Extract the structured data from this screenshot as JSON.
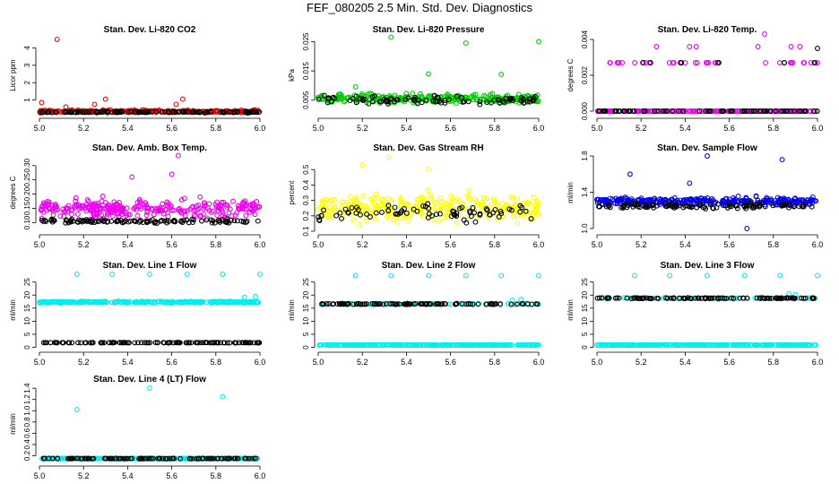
{
  "page": {
    "title": "FEF_080205  2.5 Min. Std. Dev. Diagnostics"
  },
  "colors": {
    "red": "#ee0000",
    "green": "#00cc00",
    "magenta": "#ee00ee",
    "yellow": "#ffff00",
    "blue": "#0000ee",
    "cyan": "#00eeee",
    "black": "#000000"
  },
  "chart_data": [
    {
      "type": "scatter",
      "title": "Stan. Dev. Li-820 CO2",
      "ylabel": "Licor ppm",
      "xlim": [
        5.0,
        6.0
      ],
      "ylim": [
        0.15,
        4.7
      ],
      "xticks": [
        5.0,
        5.2,
        5.4,
        5.6,
        5.8,
        6.0
      ],
      "xtick_labels": [
        "5.0",
        "5.2",
        "5.4",
        "5.6",
        "5.8",
        "6.0"
      ],
      "yticks": [
        1,
        2,
        3,
        4
      ],
      "ytick_labels": [
        "1",
        "2",
        "3",
        "4"
      ],
      "series": [
        {
          "name": "colored",
          "color": "red",
          "base": 0.35,
          "spread": 0.12,
          "n": 240,
          "outliers": [
            [
              5.08,
              4.5
            ],
            [
              5.01,
              0.85
            ],
            [
              5.3,
              1.05
            ],
            [
              5.25,
              0.75
            ],
            [
              5.65,
              1.05
            ],
            [
              5.62,
              0.75
            ],
            [
              5.12,
              0.6
            ]
          ]
        },
        {
          "name": "black",
          "color": "black",
          "base": 0.3,
          "spread": 0.06,
          "n": 120,
          "outliers": []
        }
      ]
    },
    {
      "type": "scatter",
      "title": "Stan. Dev. Li-820 Pressure",
      "ylabel": "kPa",
      "xlim": [
        5.0,
        6.0
      ],
      "ylim": [
        0.0,
        0.027
      ],
      "xticks": [
        5.0,
        5.2,
        5.4,
        5.6,
        5.8,
        6.0
      ],
      "xtick_labels": [
        "5.0",
        "5.2",
        "5.4",
        "5.6",
        "5.8",
        "6.0"
      ],
      "yticks": [
        0.005,
        0.015,
        0.025
      ],
      "ytick_labels": [
        "0.005",
        "0.015",
        "0.025"
      ],
      "series": [
        {
          "name": "colored",
          "color": "green",
          "base": 0.0055,
          "spread": 0.0025,
          "n": 300,
          "outliers": [
            [
              5.33,
              0.0265
            ],
            [
              5.67,
              0.0245
            ],
            [
              6.0,
              0.025
            ],
            [
              5.5,
              0.014
            ],
            [
              5.83,
              0.0138
            ],
            [
              5.17,
              0.0095
            ]
          ]
        },
        {
          "name": "black",
          "color": "black",
          "base": 0.005,
          "spread": 0.0022,
          "n": 90,
          "outliers": []
        }
      ]
    },
    {
      "type": "scatter",
      "title": "Stan. Dev. Li-820 Temp.",
      "ylabel": "degrees C",
      "xlim": [
        5.0,
        6.0
      ],
      "ylim": [
        -0.0002,
        0.0042
      ],
      "xticks": [
        5.0,
        5.2,
        5.4,
        5.6,
        5.8,
        6.0
      ],
      "xtick_labels": [
        "5.0",
        "5.2",
        "5.4",
        "5.6",
        "5.8",
        "6.0"
      ],
      "yticks": [
        0.0,
        0.002,
        0.004
      ],
      "ytick_labels": [
        "0.000",
        "0.002",
        "0.004"
      ],
      "series": [
        {
          "name": "colored-zero",
          "color": "magenta",
          "base": 0.0,
          "spread": 0.0,
          "n": 200,
          "outliers": []
        },
        {
          "name": "colored-high",
          "color": "magenta",
          "base": 0.0027,
          "spread": 0.0,
          "n": 40,
          "xranges": [
            [
              5.05,
              5.25
            ],
            [
              5.3,
              5.55
            ],
            [
              5.75,
              6.0
            ]
          ],
          "outliers": [
            [
              5.27,
              0.0036
            ],
            [
              5.42,
              0.0036
            ],
            [
              5.45,
              0.0036
            ],
            [
              5.76,
              0.0043
            ],
            [
              5.88,
              0.0036
            ],
            [
              5.92,
              0.0036
            ],
            [
              5.73,
              0.0036
            ]
          ]
        },
        {
          "name": "black-zero",
          "color": "black",
          "base": 0.0,
          "spread": 0.0,
          "n": 70,
          "outliers": []
        },
        {
          "name": "black-high",
          "color": "black",
          "base": 0.0027,
          "spread": 0.0,
          "n": 8,
          "xranges": [
            [
              5.2,
              5.25
            ],
            [
              5.35,
              5.4
            ],
            [
              5.55,
              5.6
            ],
            [
              5.84,
              5.9
            ],
            [
              5.97,
              6.0
            ]
          ],
          "outliers": [
            [
              6.0,
              0.0035
            ]
          ]
        }
      ]
    },
    {
      "type": "scatter",
      "title": "Stan. Dev. Amb. Box Temp.",
      "ylabel": "degrees C",
      "xlim": [
        5.0,
        6.0
      ],
      "ylim": [
        0.07,
        0.34
      ],
      "xticks": [
        5.0,
        5.2,
        5.4,
        5.6,
        5.8,
        6.0
      ],
      "xtick_labels": [
        "5.0",
        "5.2",
        "5.4",
        "5.6",
        "5.8",
        "6.0"
      ],
      "yticks": [
        0.1,
        0.15,
        0.2,
        0.25,
        0.3
      ],
      "ytick_labels": [
        "0.10",
        "0.15",
        "0.20",
        "0.25",
        "0.30"
      ],
      "series": [
        {
          "name": "colored",
          "color": "magenta",
          "base": 0.15,
          "spread": 0.05,
          "n": 300,
          "outliers": [
            [
              5.63,
              0.335
            ],
            [
              5.6,
              0.27
            ],
            [
              5.42,
              0.26
            ]
          ]
        },
        {
          "name": "black",
          "color": "black",
          "base": 0.105,
          "spread": 0.012,
          "n": 120,
          "outliers": []
        }
      ]
    },
    {
      "type": "scatter",
      "title": "Stan. Dev. Gas Stream RH",
      "ylabel": "percent",
      "xlim": [
        5.0,
        6.0
      ],
      "ylim": [
        0.1,
        0.6
      ],
      "xticks": [
        5.0,
        5.2,
        5.4,
        5.6,
        5.8,
        6.0
      ],
      "xtick_labels": [
        "5.0",
        "5.2",
        "5.4",
        "5.6",
        "5.8",
        "6.0"
      ],
      "yticks": [
        0.1,
        0.2,
        0.3,
        0.4,
        0.5
      ],
      "ytick_labels": [
        "0.1",
        "0.2",
        "0.3",
        "0.4",
        "0.5"
      ],
      "series": [
        {
          "name": "colored",
          "color": "yellow",
          "base": 0.25,
          "spread": 0.14,
          "n": 320,
          "outliers": [
            [
              5.32,
              0.58
            ],
            [
              5.2,
              0.53
            ],
            [
              5.5,
              0.5
            ]
          ]
        },
        {
          "name": "black",
          "color": "black",
          "base": 0.22,
          "spread": 0.09,
          "n": 80,
          "outliers": []
        }
      ]
    },
    {
      "type": "scatter",
      "title": "Stan. Dev. Sample Flow",
      "ylabel": "ml/min",
      "xlim": [
        5.0,
        6.0
      ],
      "ylim": [
        0.97,
        1.82
      ],
      "xticks": [
        5.0,
        5.2,
        5.4,
        5.6,
        5.8,
        6.0
      ],
      "xtick_labels": [
        "5.0",
        "5.2",
        "5.4",
        "5.6",
        "5.8",
        "6.0"
      ],
      "yticks": [
        1.0,
        1.4,
        1.8
      ],
      "ytick_labels": [
        "1.0",
        "1.4",
        "1.8"
      ],
      "series": [
        {
          "name": "colored",
          "color": "blue",
          "base": 1.3,
          "spread": 0.07,
          "n": 320,
          "outliers": [
            [
              5.5,
              1.8
            ],
            [
              5.84,
              1.76
            ],
            [
              5.15,
              1.6
            ],
            [
              5.42,
              1.5
            ],
            [
              5.68,
              1.0
            ]
          ]
        },
        {
          "name": "black",
          "color": "black",
          "base": 1.25,
          "spread": 0.05,
          "n": 110,
          "outliers": []
        }
      ]
    },
    {
      "type": "scatter",
      "title": "Stan. Dev. Line 1 Flow",
      "ylabel": "ml/min",
      "xlim": [
        5.0,
        6.0
      ],
      "ylim": [
        -0.5,
        29
      ],
      "xticks": [
        5.0,
        5.2,
        5.4,
        5.6,
        5.8,
        6.0
      ],
      "xtick_labels": [
        "5.0",
        "5.2",
        "5.4",
        "5.6",
        "5.8",
        "6.0"
      ],
      "yticks": [
        0,
        5,
        10,
        15,
        20,
        25
      ],
      "ytick_labels": [
        "0",
        "5",
        "10",
        "15",
        "20",
        "25"
      ],
      "series": [
        {
          "name": "colored",
          "color": "cyan",
          "base": 17.3,
          "spread": 0.5,
          "n": 330,
          "outliers": [
            [
              5.17,
              28
            ],
            [
              5.33,
              28
            ],
            [
              5.5,
              28
            ],
            [
              5.67,
              28
            ],
            [
              5.83,
              28
            ],
            [
              6.0,
              28
            ],
            [
              5.98,
              19.5
            ],
            [
              5.93,
              19.2
            ]
          ]
        },
        {
          "name": "black",
          "color": "black",
          "base": 1.8,
          "spread": 0.1,
          "n": 120,
          "outliers": []
        }
      ]
    },
    {
      "type": "scatter",
      "title": "Stan. Dev. Line 2 Flow",
      "ylabel": "ml/min",
      "xlim": [
        5.0,
        6.0
      ],
      "ylim": [
        -0.5,
        29
      ],
      "xticks": [
        5.0,
        5.2,
        5.4,
        5.6,
        5.8,
        6.0
      ],
      "xtick_labels": [
        "5.0",
        "5.2",
        "5.4",
        "5.6",
        "5.8",
        "6.0"
      ],
      "yticks": [
        0,
        5,
        10,
        15,
        20,
        25
      ],
      "ytick_labels": [
        "0",
        "5",
        "10",
        "15",
        "20",
        "25"
      ],
      "series": [
        {
          "name": "colored",
          "color": "cyan",
          "base": 0.9,
          "spread": 0.1,
          "n": 300,
          "outliers": [
            [
              5.17,
              27.5
            ],
            [
              5.33,
              27.5
            ],
            [
              5.5,
              27.5
            ],
            [
              5.67,
              27.5
            ],
            [
              5.83,
              27.5
            ],
            [
              6.0,
              27.5
            ],
            [
              5.88,
              18
            ],
            [
              5.92,
              18.3
            ]
          ]
        },
        {
          "name": "colored-upper",
          "color": "cyan",
          "base": 16.6,
          "spread": 0.4,
          "n": 60,
          "outliers": []
        },
        {
          "name": "black",
          "color": "black",
          "base": 16.6,
          "spread": 0.3,
          "n": 110,
          "outliers": []
        }
      ]
    },
    {
      "type": "scatter",
      "title": "Stan. Dev. Line 3 Flow",
      "ylabel": "ml/min",
      "xlim": [
        5.0,
        6.0
      ],
      "ylim": [
        -0.5,
        29
      ],
      "xticks": [
        5.0,
        5.2,
        5.4,
        5.6,
        5.8,
        6.0
      ],
      "xtick_labels": [
        "5.0",
        "5.2",
        "5.4",
        "5.6",
        "5.8",
        "6.0"
      ],
      "yticks": [
        0,
        5,
        10,
        15,
        20,
        25
      ],
      "ytick_labels": [
        "0",
        "5",
        "10",
        "15",
        "20",
        "25"
      ],
      "series": [
        {
          "name": "colored",
          "color": "cyan",
          "base": 0.9,
          "spread": 0.1,
          "n": 300,
          "outliers": [
            [
              5.17,
              27.5
            ],
            [
              5.33,
              27.5
            ],
            [
              5.5,
              27.5
            ],
            [
              5.67,
              27.5
            ],
            [
              5.83,
              27.5
            ],
            [
              6.0,
              27.5
            ],
            [
              5.87,
              20.5
            ],
            [
              5.9,
              20.2
            ]
          ]
        },
        {
          "name": "colored-upper",
          "color": "cyan",
          "base": 18.8,
          "spread": 0.4,
          "n": 60,
          "outliers": []
        },
        {
          "name": "black",
          "color": "black",
          "base": 18.8,
          "spread": 0.3,
          "n": 110,
          "outliers": []
        }
      ]
    },
    {
      "type": "scatter",
      "title": "Stan. Dev. Line 4 (LT) Flow",
      "ylabel": "ml/min",
      "xlim": [
        5.0,
        6.0
      ],
      "ylim": [
        0.08,
        1.45
      ],
      "xticks": [
        5.0,
        5.2,
        5.4,
        5.6,
        5.8,
        6.0
      ],
      "xtick_labels": [
        "5.0",
        "5.2",
        "5.4",
        "5.6",
        "5.8",
        "6.0"
      ],
      "yticks": [
        0.2,
        0.4,
        0.6,
        0.8,
        1.0,
        1.2,
        1.4
      ],
      "ytick_labels": [
        "0.2",
        "0.4",
        "0.6",
        "0.8",
        "1.0",
        "1.2",
        "1.4"
      ],
      "series": [
        {
          "name": "colored",
          "color": "cyan",
          "base": 0.15,
          "spread": 0.01,
          "n": 300,
          "outliers": [
            [
              5.5,
              1.4
            ],
            [
              5.83,
              1.25
            ],
            [
              5.17,
              1.02
            ]
          ]
        },
        {
          "name": "black",
          "color": "black",
          "base": 0.15,
          "spread": 0.008,
          "n": 110,
          "outliers": []
        }
      ]
    }
  ]
}
